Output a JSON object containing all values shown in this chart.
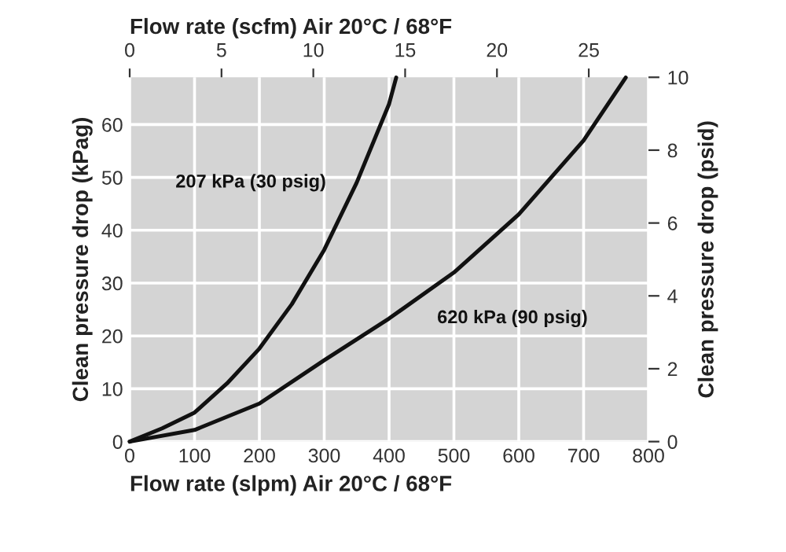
{
  "chart_data": {
    "type": "line",
    "xlabel": "Flow rate (slpm) Air 20°C / 68°F",
    "x2label": "Flow rate (scfm) Air 20°C / 68°F",
    "ylabel": "Clean pressure drop (kPag)",
    "y2label": "Clean pressure drop (psid)",
    "xlim": [
      0,
      800
    ],
    "xticks": [
      0,
      100,
      200,
      300,
      400,
      500,
      600,
      700,
      800
    ],
    "x2lim": [
      0,
      28.25
    ],
    "x2ticks": [
      0,
      5,
      10,
      15,
      20,
      25
    ],
    "ylim": [
      0,
      68.95
    ],
    "yticks": [
      0,
      10,
      20,
      30,
      40,
      50,
      60
    ],
    "y2lim": [
      0,
      10
    ],
    "y2ticks": [
      0,
      2,
      4,
      6,
      8,
      10
    ],
    "grid": true,
    "legend": false,
    "marker": "none",
    "line_style": "solid",
    "series": [
      {
        "name": "207 kPa (30 psig)",
        "color": "#111111",
        "x": [
          0,
          50,
          100,
          150,
          200,
          250,
          300,
          350,
          400,
          411
        ],
        "values": [
          0,
          2.5,
          5.5,
          11,
          17.6,
          26,
          36.3,
          49,
          63.9,
          68.9
        ]
      },
      {
        "name": "620 kPa (90 psig)",
        "color": "#111111",
        "x": [
          0,
          100,
          200,
          300,
          400,
          500,
          600,
          700,
          765
        ],
        "values": [
          0,
          2.2,
          7.2,
          15.4,
          23.3,
          32,
          43,
          57,
          68.9
        ]
      }
    ]
  }
}
